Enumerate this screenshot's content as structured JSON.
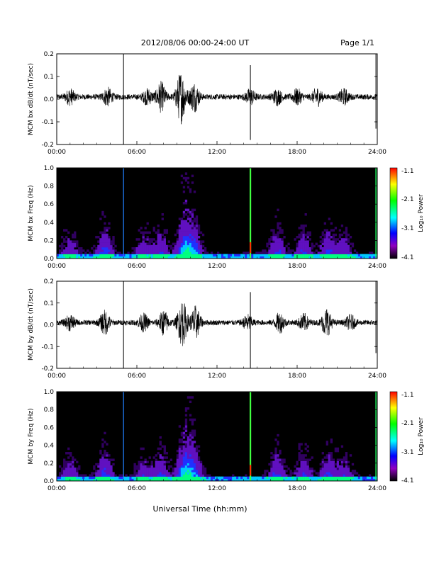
{
  "header": {
    "title": "2012/08/06  00:00-24:00 UT",
    "page_label": "Page 1/1"
  },
  "footer": {
    "xlabel": "Universal Time (hh:mm)"
  },
  "colorbar": {
    "label": "Log₁₀ Power",
    "ticks": [
      "-1.1",
      "-2.1",
      "-3.1",
      "-4.1"
    ],
    "colors": [
      "#ff0000",
      "#ffff00",
      "#00ff00",
      "#00ffff",
      "#0000ff",
      "#9000c0",
      "#000000"
    ]
  },
  "chart_data": [
    {
      "type": "line",
      "ylabel": "MCM bx dB/dt (nT/sec)",
      "ylim": [
        -0.2,
        0.2
      ],
      "yticks": [
        "0.2",
        "0.1",
        "0.0",
        "-0.1",
        "-0.2"
      ],
      "xticks": [
        "00:00",
        "06:00",
        "12:00",
        "18:00",
        "24:00"
      ],
      "xlim_hours": [
        0,
        24
      ],
      "bursts": [
        [
          1.0,
          0.03
        ],
        [
          3.8,
          0.035
        ],
        [
          6.8,
          0.03
        ],
        [
          7.8,
          0.06
        ],
        [
          9.3,
          0.11
        ],
        [
          10.3,
          0.06
        ],
        [
          14.5,
          0.03
        ],
        [
          16.5,
          0.03
        ],
        [
          18.0,
          0.03
        ],
        [
          19.5,
          0.035
        ],
        [
          21.5,
          0.03
        ]
      ],
      "spikes": [
        [
          5.0,
          0.2,
          -0.2
        ],
        [
          14.5,
          0.15,
          -0.18
        ],
        [
          23.9,
          0.2,
          -0.13
        ]
      ]
    },
    {
      "type": "heatmap",
      "ylabel": "MCM bx Freq (Hz)",
      "ylim": [
        0.0,
        1.0
      ],
      "yticks": [
        "1.0",
        "0.8",
        "0.6",
        "0.4",
        "0.2",
        "0.0"
      ],
      "xticks": [
        "00:00",
        "06:00",
        "12:00",
        "18:00",
        "24:00"
      ],
      "xlim_hours": [
        0,
        24
      ],
      "power_range": [
        -4.1,
        -1.1
      ]
    },
    {
      "type": "line",
      "ylabel": "MCM by dB/dt (nT/sec)",
      "ylim": [
        -0.2,
        0.2
      ],
      "yticks": [
        "0.2",
        "0.1",
        "0.0",
        "-0.1",
        "-0.2"
      ],
      "xticks": [
        "00:00",
        "06:00",
        "12:00",
        "18:00",
        "24:00"
      ],
      "xlim_hours": [
        0,
        24
      ],
      "bursts": [
        [
          1.0,
          0.03
        ],
        [
          3.6,
          0.05
        ],
        [
          6.5,
          0.035
        ],
        [
          8.0,
          0.05
        ],
        [
          9.4,
          0.1
        ],
        [
          10.4,
          0.07
        ],
        [
          14.3,
          0.03
        ],
        [
          16.7,
          0.04
        ],
        [
          18.5,
          0.035
        ],
        [
          20.2,
          0.06
        ],
        [
          22.0,
          0.03
        ]
      ],
      "spikes": [
        [
          5.0,
          0.2,
          -0.2
        ],
        [
          14.5,
          0.15,
          -0.2
        ],
        [
          23.9,
          0.2,
          -0.13
        ]
      ]
    },
    {
      "type": "heatmap",
      "ylabel": "MCM by Freq (Hz)",
      "ylim": [
        0.0,
        1.0
      ],
      "yticks": [
        "1.0",
        "0.8",
        "0.6",
        "0.4",
        "0.2",
        "0.0"
      ],
      "xticks": [
        "00:00",
        "06:00",
        "12:00",
        "18:00",
        "24:00"
      ],
      "xlim_hours": [
        0,
        24
      ],
      "power_range": [
        -4.1,
        -1.1
      ]
    }
  ]
}
